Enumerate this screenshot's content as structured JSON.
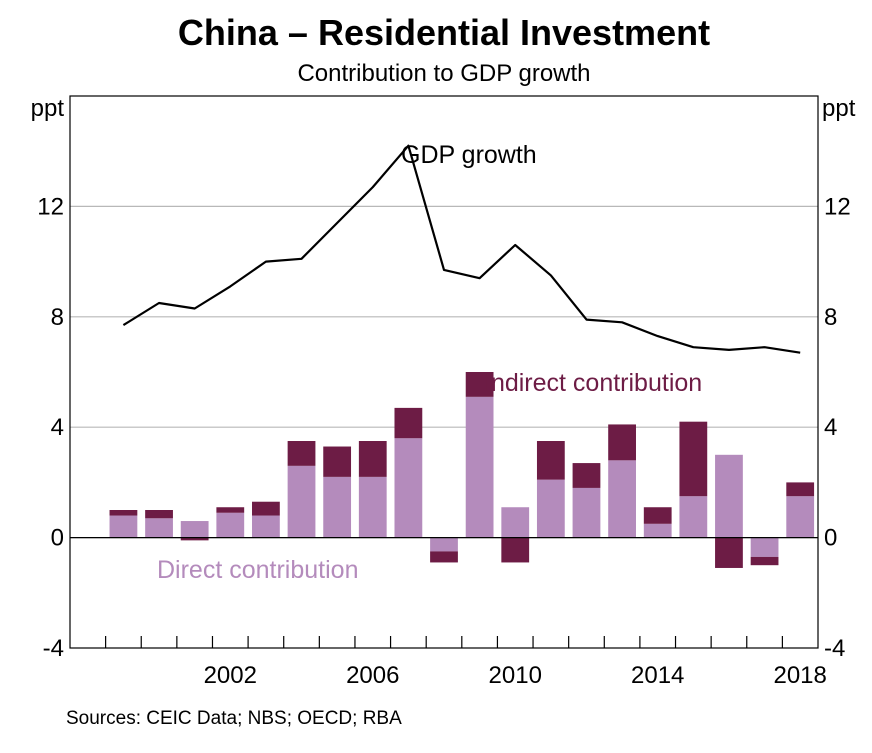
{
  "chart_data": {
    "type": "bar",
    "title": "China – Residential Investment",
    "subtitle": "Contribution to GDP growth",
    "unit_label_left": "ppt",
    "unit_label_right": "ppt",
    "source": "Sources: CEIC Data; NBS; OECD; RBA",
    "ylim": [
      -4,
      16
    ],
    "yticks": [
      -4,
      0,
      4,
      8,
      12
    ],
    "ytick_labels": [
      "-4",
      "0",
      "4",
      "8",
      "12"
    ],
    "xlim": [
      1998,
      2019
    ],
    "xticks_labeled": [
      2002,
      2006,
      2010,
      2014,
      2018
    ],
    "xtick_labels": [
      "2002",
      "2006",
      "2010",
      "2014",
      "2018"
    ],
    "years": [
      1999,
      2000,
      2001,
      2002,
      2003,
      2004,
      2005,
      2006,
      2007,
      2008,
      2009,
      2010,
      2011,
      2012,
      2013,
      2014,
      2015,
      2016,
      2017,
      2018
    ],
    "series": [
      {
        "name": "Direct contribution",
        "type": "bar",
        "color": "#b48bbc",
        "values": [
          0.8,
          0.7,
          0.6,
          0.9,
          0.8,
          2.6,
          2.2,
          2.2,
          3.6,
          -0.5,
          5.1,
          1.1,
          2.1,
          1.8,
          2.8,
          0.5,
          1.5,
          3.0,
          -0.7,
          1.5
        ]
      },
      {
        "name": "Indirect contribution",
        "type": "bar",
        "color": "#6d1c45",
        "values": [
          0.2,
          0.3,
          -0.1,
          0.2,
          0.5,
          0.9,
          1.1,
          1.3,
          1.1,
          -0.4,
          0.9,
          -0.9,
          1.4,
          0.9,
          1.3,
          0.6,
          2.7,
          -1.1,
          -0.3,
          0.5
        ]
      },
      {
        "name": "GDP growth",
        "type": "line",
        "color": "#000000",
        "values": [
          7.7,
          8.5,
          8.3,
          9.1,
          10.0,
          10.1,
          11.4,
          12.7,
          14.2,
          9.7,
          9.4,
          10.6,
          9.5,
          7.9,
          7.8,
          7.3,
          6.9,
          6.8,
          6.9,
          6.7
        ]
      }
    ],
    "annotations": {
      "gdp_growth": "GDP growth",
      "indirect": "Indirect contribution",
      "direct": "Direct contribution"
    }
  }
}
